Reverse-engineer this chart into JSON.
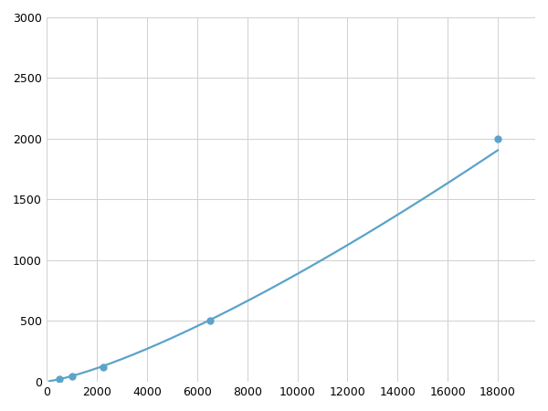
{
  "x_points": [
    500,
    1000,
    2250,
    6500,
    18000
  ],
  "y_points": [
    20,
    40,
    120,
    500,
    2000
  ],
  "line_color": "#5ba3c9",
  "marker_color": "#5ba3c9",
  "marker_size": 5,
  "line_width": 1.6,
  "xlim": [
    0,
    19500
  ],
  "ylim": [
    0,
    3000
  ],
  "xticks": [
    0,
    2000,
    4000,
    6000,
    8000,
    10000,
    12000,
    14000,
    16000,
    18000
  ],
  "yticks": [
    0,
    500,
    1000,
    1500,
    2000,
    2500,
    3000
  ],
  "grid_color": "#d0d0d0",
  "background_color": "#ffffff",
  "tick_fontsize": 9
}
